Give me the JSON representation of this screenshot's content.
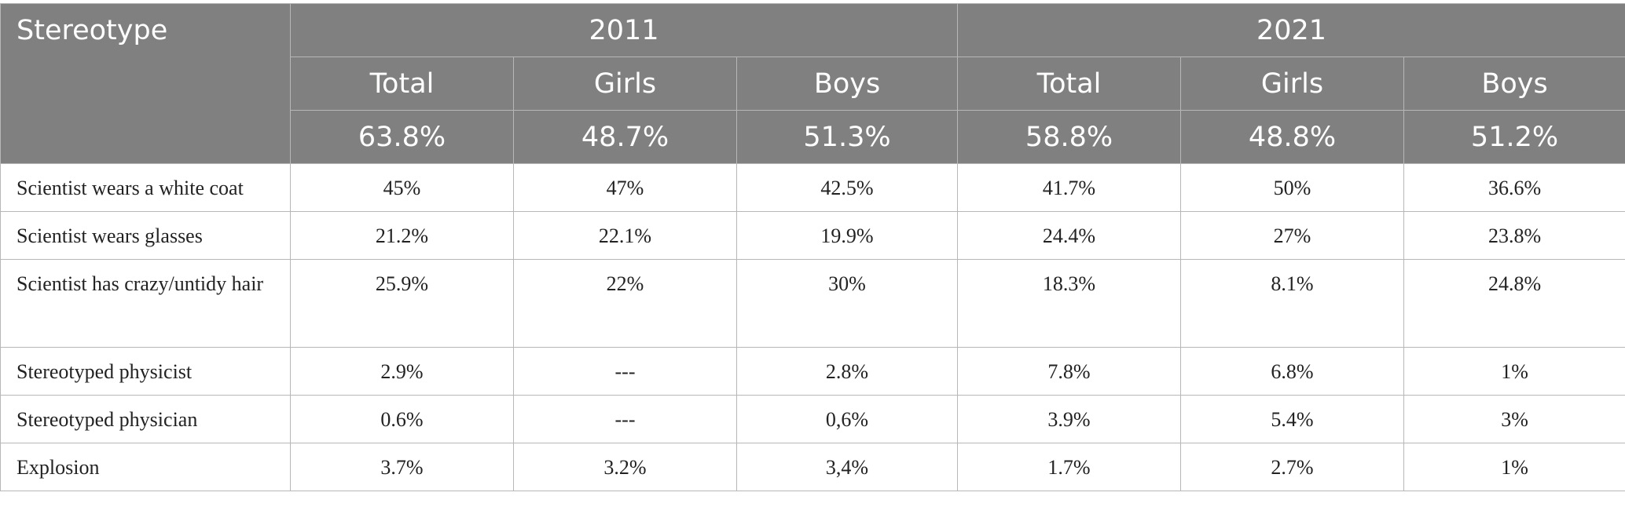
{
  "table": {
    "stub_header": "Stereotype",
    "years": [
      "2011",
      "2021"
    ],
    "groups": [
      "Total",
      "Girls",
      "Boys",
      "Total",
      "Girls",
      "Boys"
    ],
    "sample_pct": [
      "63.8%",
      "48.7%",
      "51.3%",
      "58.8%",
      "48.8%",
      "51.2%"
    ],
    "rows": [
      {
        "label": "Scientist wears a white coat",
        "values": [
          "45%",
          "47%",
          "42.5%",
          "41.7%",
          "50%",
          "36.6%"
        ]
      },
      {
        "label": "Scientist wears glasses",
        "values": [
          "21.2%",
          "22.1%",
          "19.9%",
          "24.4%",
          "27%",
          "23.8%"
        ]
      },
      {
        "label": "Scientist has crazy/untidy hair",
        "values": [
          "25.9%",
          "22%",
          "30%",
          "18.3%",
          "8.1%",
          "24.8%"
        ]
      },
      {
        "label": "Stereotyped physicist",
        "values": [
          "2.9%",
          "---",
          "2.8%",
          "7.8%",
          "6.8%",
          "1%"
        ]
      },
      {
        "label": "Stereotyped physician",
        "values": [
          "0.6%",
          "---",
          "0,6%",
          "3.9%",
          "5.4%",
          "3%"
        ]
      },
      {
        "label": "Explosion",
        "values": [
          "3.7%",
          "3.2%",
          "3,4%",
          "1.7%",
          "2.7%",
          "1%"
        ]
      }
    ]
  }
}
